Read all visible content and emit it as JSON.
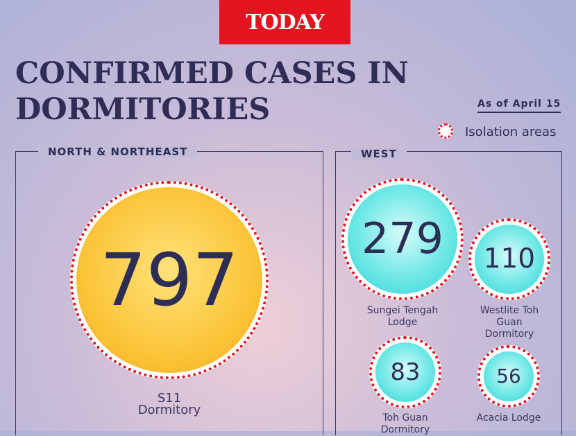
{
  "header": {
    "logo": "TODAY",
    "title": "CONFIRMED CASES IN DORMITORIES",
    "date": "As of April 15",
    "legend": "Isolation areas"
  },
  "panels": [
    {
      "title": "NORTH & NORTHEAST",
      "items": [
        {
          "value": 797,
          "label": "S11 Dormitory"
        }
      ]
    },
    {
      "title": "WEST",
      "items": [
        {
          "value": 279,
          "label": "Sungei Tengah Lodge"
        },
        {
          "value": 110,
          "label": "Westlite Toh Guan Dormitory"
        },
        {
          "value": 83,
          "label": "Toh Guan Dormitory"
        },
        {
          "value": 56,
          "label": "Acacia Lodge"
        }
      ]
    }
  ]
}
